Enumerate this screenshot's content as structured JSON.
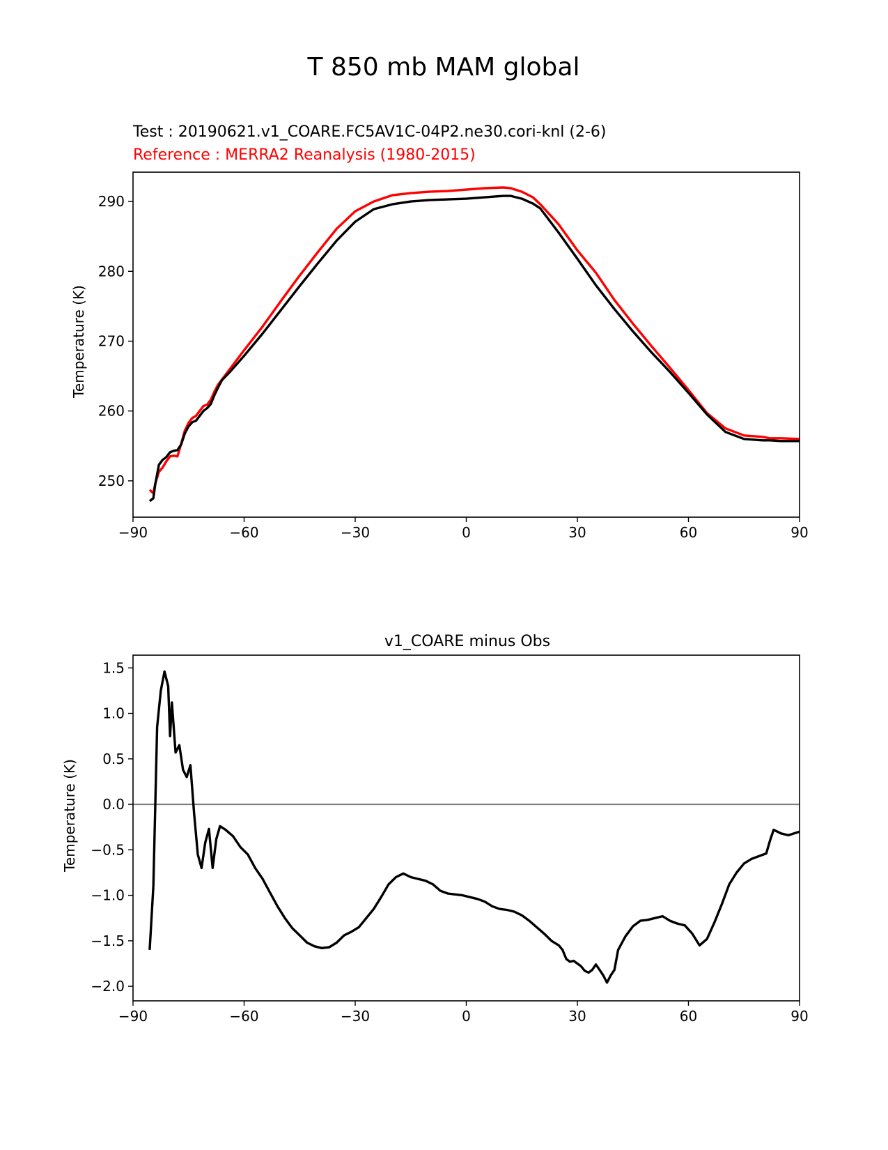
{
  "figure": {
    "title": "T 850 mb MAM global",
    "test_label": "Test : 20190621.v1_COARE.FC5AV1C-04P2.ne30.cori-knl (2-6)",
    "reference_label": "Reference : MERRA2 Reanalysis (1980-2015)"
  },
  "colors": {
    "test": "#000000",
    "reference": "#ff0000",
    "zero_line": "#808080"
  },
  "chart_data": [
    {
      "type": "line",
      "title": "",
      "xlabel": "",
      "ylabel": "Temperature (K)",
      "xlim": [
        -90,
        90
      ],
      "ylim": [
        244.8,
        294.2
      ],
      "xticks": [
        -90,
        -60,
        -30,
        0,
        30,
        60,
        90
      ],
      "xtick_labels": [
        "−90",
        "−60",
        "−30",
        "0",
        "30",
        "60",
        "90"
      ],
      "yticks": [
        250,
        260,
        270,
        280,
        290
      ],
      "ytick_labels": [
        "250",
        "260",
        "270",
        "280",
        "290"
      ],
      "series": [
        {
          "name": "Reference : MERRA2 Reanalysis (1980-2015)",
          "color": "#ff0000",
          "x": [
            -85.5,
            -84.5,
            -84,
            -83,
            -82,
            -81,
            -80,
            -79,
            -78,
            -77,
            -76,
            -75,
            -74,
            -73,
            -72,
            -71,
            -70,
            -69,
            -68,
            -67,
            -66,
            -64,
            -60,
            -55,
            -50,
            -45,
            -40,
            -35,
            -30,
            -25,
            -20,
            -15,
            -10,
            -5,
            0,
            5,
            10,
            12,
            15,
            18,
            20,
            25,
            30,
            35,
            40,
            45,
            50,
            55,
            60,
            65,
            70,
            75,
            80,
            82,
            85,
            90
          ],
          "y": [
            248.7,
            248.2,
            249.6,
            251.3,
            251.9,
            252.8,
            253.5,
            253.6,
            253.5,
            255.3,
            257.2,
            258.3,
            259.0,
            259.3,
            260.0,
            260.7,
            260.9,
            261.6,
            262.8,
            263.8,
            264.5,
            265.9,
            268.7,
            272.1,
            275.8,
            279.4,
            282.8,
            286.1,
            288.6,
            290.0,
            290.9,
            291.2,
            291.4,
            291.5,
            291.7,
            291.9,
            292.0,
            291.9,
            291.4,
            290.6,
            289.6,
            286.7,
            283.0,
            279.8,
            275.9,
            272.5,
            269.3,
            266.2,
            263.0,
            259.7,
            257.5,
            256.5,
            256.3,
            256.1,
            256.1,
            256.0
          ]
        },
        {
          "name": "Test : 20190621.v1_COARE.FC5AV1C-04P2.ne30.cori-knl (2-6)",
          "color": "#000000",
          "x": [
            -85.5,
            -84.5,
            -84,
            -83,
            -82,
            -81,
            -80,
            -79,
            -78,
            -77,
            -76,
            -75,
            -74,
            -73,
            -72,
            -71,
            -70,
            -69,
            -68,
            -67,
            -66,
            -64,
            -60,
            -55,
            -50,
            -45,
            -40,
            -35,
            -30,
            -25,
            -20,
            -15,
            -10,
            -5,
            0,
            5,
            10,
            12,
            15,
            18,
            20,
            25,
            30,
            35,
            40,
            45,
            50,
            55,
            60,
            65,
            70,
            75,
            80,
            82,
            85,
            90
          ],
          "y": [
            247.1,
            247.5,
            249.5,
            252.3,
            253.0,
            253.4,
            254.1,
            254.3,
            254.4,
            255.2,
            256.8,
            257.8,
            258.4,
            258.6,
            259.3,
            260.0,
            260.4,
            261.0,
            262.3,
            263.4,
            264.4,
            265.5,
            267.9,
            271.1,
            274.5,
            277.9,
            281.2,
            284.4,
            287.1,
            288.9,
            289.6,
            290.0,
            290.2,
            290.3,
            290.4,
            290.6,
            290.8,
            290.8,
            290.4,
            289.7,
            289.0,
            285.5,
            281.8,
            278.0,
            274.6,
            271.4,
            268.4,
            265.6,
            262.6,
            259.5,
            257.0,
            256.0,
            255.8,
            255.8,
            255.7,
            255.7
          ]
        }
      ]
    },
    {
      "type": "line",
      "title": "v1_COARE minus Obs",
      "xlabel": "",
      "ylabel": "Temperature (K)",
      "xlim": [
        -90,
        90
      ],
      "ylim": [
        -2.16,
        1.64
      ],
      "xticks": [
        -90,
        -60,
        -30,
        0,
        30,
        60,
        90
      ],
      "xtick_labels": [
        "−90",
        "−60",
        "−30",
        "0",
        "30",
        "60",
        "90"
      ],
      "yticks": [
        -2.0,
        -1.5,
        -1.0,
        -0.5,
        0.0,
        0.5,
        1.0,
        1.5
      ],
      "ytick_labels": [
        "−2.0",
        "−1.5",
        "−1.0",
        "−0.5",
        "0.0",
        "0.5",
        "1.0",
        "1.5"
      ],
      "hline": 0.0,
      "series": [
        {
          "name": "v1_COARE minus Obs",
          "color": "#000000",
          "x": [
            -85.5,
            -84.5,
            -83.5,
            -82.5,
            -81.5,
            -80.5,
            -80,
            -79.5,
            -78.5,
            -77.5,
            -76.5,
            -75.5,
            -74.5,
            -73.5,
            -72.5,
            -71.5,
            -70.5,
            -69.5,
            -68.5,
            -67.5,
            -66.5,
            -65,
            -63,
            -61,
            -59,
            -57,
            -55,
            -53,
            -51,
            -49,
            -47,
            -45,
            -43,
            -41,
            -39,
            -37,
            -35,
            -33,
            -31,
            -29,
            -27,
            -25,
            -23,
            -21,
            -19,
            -17,
            -15,
            -13,
            -11,
            -9,
            -7,
            -5,
            -3,
            -1,
            1,
            3,
            5,
            7,
            9,
            11,
            13,
            15,
            17,
            19,
            21,
            23,
            25,
            26,
            27,
            28,
            29,
            30,
            31,
            32,
            33,
            34,
            35,
            36,
            37,
            38,
            39,
            40,
            41,
            43,
            45,
            47,
            49,
            51,
            53,
            55,
            57,
            59,
            61,
            63,
            65,
            67,
            69,
            71,
            73,
            75,
            77,
            79,
            81,
            82,
            83,
            84,
            85,
            87,
            90
          ],
          "y": [
            -1.6,
            -0.9,
            0.85,
            1.25,
            1.46,
            1.3,
            0.75,
            1.12,
            0.57,
            0.65,
            0.38,
            0.3,
            0.43,
            -0.1,
            -0.55,
            -0.7,
            -0.42,
            -0.27,
            -0.7,
            -0.38,
            -0.24,
            -0.28,
            -0.35,
            -0.47,
            -0.55,
            -0.7,
            -0.82,
            -0.97,
            -1.12,
            -1.25,
            -1.36,
            -1.44,
            -1.52,
            -1.56,
            -1.58,
            -1.57,
            -1.52,
            -1.44,
            -1.4,
            -1.35,
            -1.25,
            -1.15,
            -1.02,
            -0.88,
            -0.8,
            -0.76,
            -0.8,
            -0.82,
            -0.84,
            -0.88,
            -0.95,
            -0.98,
            -0.99,
            -1.0,
            -1.02,
            -1.04,
            -1.07,
            -1.12,
            -1.15,
            -1.16,
            -1.18,
            -1.22,
            -1.28,
            -1.35,
            -1.42,
            -1.5,
            -1.55,
            -1.6,
            -1.7,
            -1.73,
            -1.72,
            -1.75,
            -1.78,
            -1.83,
            -1.85,
            -1.82,
            -1.76,
            -1.82,
            -1.88,
            -1.96,
            -1.88,
            -1.82,
            -1.6,
            -1.45,
            -1.34,
            -1.28,
            -1.27,
            -1.25,
            -1.23,
            -1.28,
            -1.31,
            -1.33,
            -1.42,
            -1.55,
            -1.48,
            -1.3,
            -1.1,
            -0.88,
            -0.75,
            -0.65,
            -0.6,
            -0.57,
            -0.54,
            -0.4,
            -0.28,
            -0.3,
            -0.32,
            -0.34,
            -0.3
          ]
        }
      ]
    }
  ]
}
